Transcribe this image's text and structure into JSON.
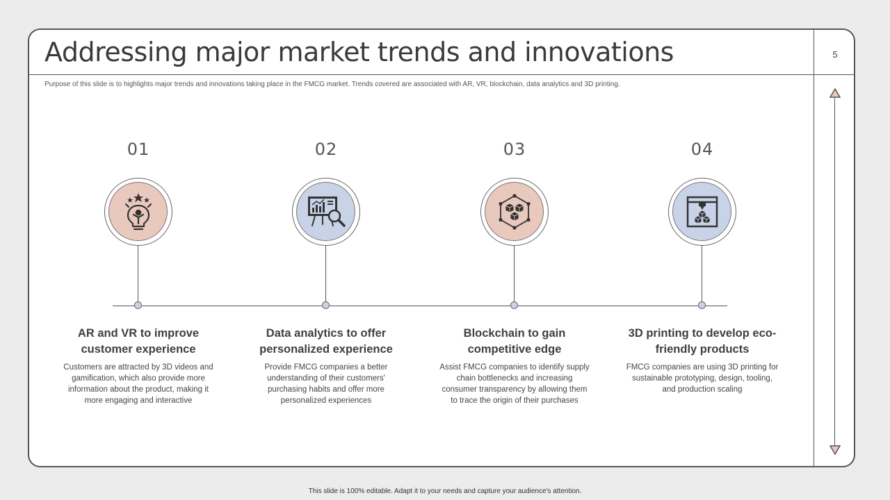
{
  "slide": {
    "title": "Addressing major market trends and innovations",
    "page_number": "5",
    "subtitle": "Purpose of this slide is to highlights major trends and innovations taking place in the FMCG market. Trends covered are associated with AR, VR, blockchain, data analytics and 3D printing."
  },
  "colors": {
    "pink": "#e9c8be",
    "blue": "#c9d3e8",
    "line": "#555555"
  },
  "steps": [
    {
      "number": "01",
      "icon": "lightbulb-person-icon",
      "color": "#e9c8be",
      "heading": "AR and VR to improve customer experience",
      "body": "Customers are attracted by 3D videos and gamification, which also provide more information about the product, making it more engaging and interactive"
    },
    {
      "number": "02",
      "icon": "analytics-board-icon",
      "color": "#c9d3e8",
      "heading": "Data analytics to offer personalized experience",
      "body": "Provide FMCG companies a better understanding of their customers' purchasing habits and offer more personalized experiences"
    },
    {
      "number": "03",
      "icon": "blockchain-cubes-icon",
      "color": "#e9c8be",
      "heading": "Blockchain to gain competitive edge",
      "body": "Assist FMCG companies to identify supply chain bottlenecks and increasing consumer transparency by allowing them to trace the origin of their purchases"
    },
    {
      "number": "04",
      "icon": "3d-printer-icon",
      "color": "#c9d3e8",
      "heading": "3D printing to develop eco-friendly products",
      "body": "FMCG companies are using 3D printing for sustainable prototyping, design, tooling, and production scaling"
    }
  ],
  "footer": "This slide is 100% editable. Adapt it to your needs and capture your audience's attention."
}
